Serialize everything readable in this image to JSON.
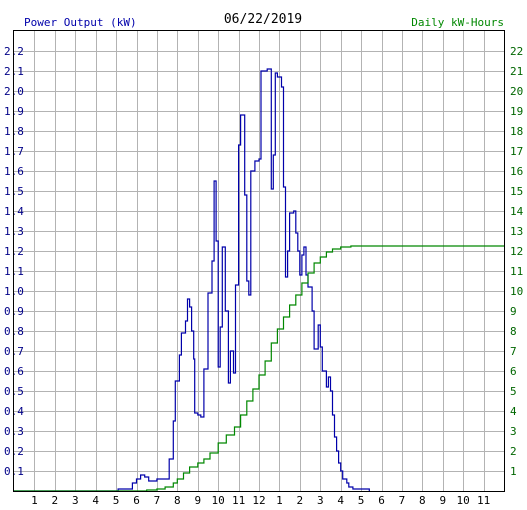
{
  "chart_data": {
    "type": "line",
    "title": "06/22/2019",
    "left_axis": {
      "label": "Power Output (kW)",
      "ylim": [
        0,
        2.3
      ],
      "ticks": [
        "0.1",
        "0.2",
        "0.3",
        "0.4",
        "0.5",
        "0.6",
        "0.7",
        "0.8",
        "0.9",
        "1.0",
        "1.1",
        "1.2",
        "1.3",
        "1.4",
        "1.5",
        "1.6",
        "1.7",
        "1.8",
        "1.9",
        "2.0",
        "2.1",
        "2.2"
      ],
      "color": "#0000aa"
    },
    "right_axis": {
      "label": "Daily kW-Hours",
      "ylim": [
        0,
        23
      ],
      "ticks": [
        "1",
        "2",
        "3",
        "4",
        "5",
        "6",
        "7",
        "8",
        "9",
        "10",
        "11",
        "12",
        "13",
        "14",
        "15",
        "16",
        "17",
        "18",
        "19",
        "20",
        "21",
        "22"
      ],
      "color": "#008800"
    },
    "x_axis": {
      "xlim": [
        0,
        24
      ],
      "tick_labels": [
        "1",
        "2",
        "3",
        "4",
        "5",
        "6",
        "7",
        "8",
        "9",
        "10",
        "11",
        "12",
        "1",
        "2",
        "3",
        "4",
        "5",
        "6",
        "7",
        "8",
        "9",
        "10",
        "11"
      ]
    },
    "grid": true,
    "series": [
      {
        "axis": "left",
        "color": "#0000aa",
        "step": true,
        "points": [
          [
            0,
            0
          ],
          [
            5.0,
            0
          ],
          [
            5.1,
            0.01
          ],
          [
            5.7,
            0.01
          ],
          [
            5.8,
            0.04
          ],
          [
            6.0,
            0.06
          ],
          [
            6.2,
            0.08
          ],
          [
            6.4,
            0.07
          ],
          [
            6.6,
            0.05
          ],
          [
            6.8,
            0.05
          ],
          [
            7.0,
            0.06
          ],
          [
            7.5,
            0.06
          ],
          [
            7.6,
            0.16
          ],
          [
            7.8,
            0.35
          ],
          [
            7.9,
            0.55
          ],
          [
            8.1,
            0.68
          ],
          [
            8.2,
            0.79
          ],
          [
            8.4,
            0.85
          ],
          [
            8.5,
            0.96
          ],
          [
            8.6,
            0.92
          ],
          [
            8.7,
            0.8
          ],
          [
            8.8,
            0.66
          ],
          [
            8.85,
            0.39
          ],
          [
            9.0,
            0.38
          ],
          [
            9.15,
            0.37
          ],
          [
            9.3,
            0.61
          ],
          [
            9.5,
            0.99
          ],
          [
            9.7,
            1.15
          ],
          [
            9.8,
            1.55
          ],
          [
            9.9,
            1.25
          ],
          [
            10.0,
            0.62
          ],
          [
            10.1,
            0.82
          ],
          [
            10.2,
            1.22
          ],
          [
            10.35,
            0.9
          ],
          [
            10.5,
            0.54
          ],
          [
            10.6,
            0.7
          ],
          [
            10.75,
            0.59
          ],
          [
            10.85,
            1.03
          ],
          [
            11.0,
            1.73
          ],
          [
            11.1,
            1.88
          ],
          [
            11.3,
            1.48
          ],
          [
            11.4,
            1.05
          ],
          [
            11.5,
            0.98
          ],
          [
            11.6,
            1.6
          ],
          [
            11.8,
            1.65
          ],
          [
            12.0,
            1.66
          ],
          [
            12.1,
            2.1
          ],
          [
            12.4,
            2.11
          ],
          [
            12.5,
            2.11
          ],
          [
            12.6,
            1.51
          ],
          [
            12.7,
            1.68
          ],
          [
            12.8,
            2.09
          ],
          [
            12.9,
            2.07
          ],
          [
            13.1,
            2.02
          ],
          [
            13.2,
            1.52
          ],
          [
            13.3,
            1.07
          ],
          [
            13.4,
            1.2
          ],
          [
            13.5,
            1.39
          ],
          [
            13.7,
            1.4
          ],
          [
            13.8,
            1.29
          ],
          [
            13.9,
            1.2
          ],
          [
            14.0,
            1.08
          ],
          [
            14.1,
            1.18
          ],
          [
            14.2,
            1.22
          ],
          [
            14.3,
            1.08
          ],
          [
            14.4,
            1.02
          ],
          [
            14.6,
            0.9
          ],
          [
            14.7,
            0.71
          ],
          [
            14.9,
            0.83
          ],
          [
            15.0,
            0.72
          ],
          [
            15.1,
            0.6
          ],
          [
            15.3,
            0.52
          ],
          [
            15.4,
            0.57
          ],
          [
            15.5,
            0.5
          ],
          [
            15.6,
            0.38
          ],
          [
            15.7,
            0.27
          ],
          [
            15.8,
            0.2
          ],
          [
            15.9,
            0.14
          ],
          [
            16.0,
            0.1
          ],
          [
            16.1,
            0.06
          ],
          [
            16.3,
            0.04
          ],
          [
            16.4,
            0.02
          ],
          [
            16.6,
            0.01
          ],
          [
            17.0,
            0.01
          ],
          [
            17.3,
            0.01
          ],
          [
            17.4,
            0
          ]
        ]
      },
      {
        "axis": "right",
        "color": "#008800",
        "step": true,
        "points": [
          [
            0,
            0
          ],
          [
            6.0,
            0
          ],
          [
            6.5,
            0.05
          ],
          [
            7.0,
            0.1
          ],
          [
            7.4,
            0.2
          ],
          [
            7.8,
            0.4
          ],
          [
            8.0,
            0.6
          ],
          [
            8.3,
            0.9
          ],
          [
            8.6,
            1.2
          ],
          [
            9.0,
            1.4
          ],
          [
            9.3,
            1.6
          ],
          [
            9.6,
            1.9
          ],
          [
            10.0,
            2.4
          ],
          [
            10.4,
            2.8
          ],
          [
            10.8,
            3.2
          ],
          [
            11.1,
            3.8
          ],
          [
            11.4,
            4.5
          ],
          [
            11.7,
            5.1
          ],
          [
            12.0,
            5.8
          ],
          [
            12.3,
            6.5
          ],
          [
            12.6,
            7.4
          ],
          [
            12.9,
            8.1
          ],
          [
            13.2,
            8.7
          ],
          [
            13.5,
            9.3
          ],
          [
            13.8,
            9.8
          ],
          [
            14.1,
            10.4
          ],
          [
            14.4,
            10.9
          ],
          [
            14.7,
            11.4
          ],
          [
            15.0,
            11.7
          ],
          [
            15.3,
            11.95
          ],
          [
            15.6,
            12.1
          ],
          [
            16.0,
            12.2
          ],
          [
            16.5,
            12.25
          ],
          [
            17.0,
            12.25
          ],
          [
            24,
            12.25
          ]
        ]
      }
    ]
  }
}
